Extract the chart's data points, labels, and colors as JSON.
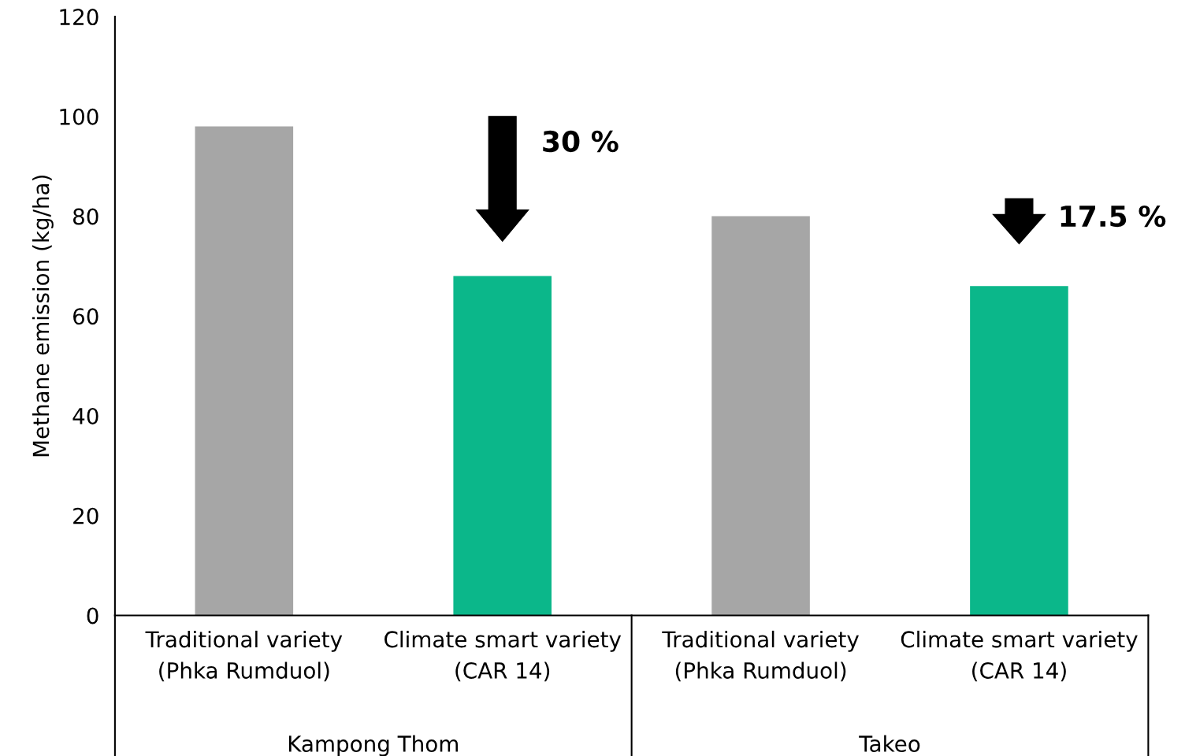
{
  "chart_data": {
    "type": "bar",
    "categories": [
      "Traditional variety\n(Phka Rumduol)",
      "Climate smart variety\n(CAR 14)",
      "Traditional variety\n(Phka Rumduol)",
      "Climate smart variety\n(CAR 14)"
    ],
    "values": [
      98,
      68,
      80,
      66
    ],
    "colors": [
      "#a6a6a6",
      "#0bb78a",
      "#a6a6a6",
      "#0bb78a"
    ],
    "ylabel": "Methane emission (kg/ha)",
    "ylim": [
      0,
      120
    ],
    "yticks": [
      0,
      20,
      40,
      60,
      80,
      100,
      120
    ],
    "grid": false,
    "annotations": [
      "30 %",
      "17.5 %",
      "Kampong Thom",
      "Takeo"
    ]
  }
}
